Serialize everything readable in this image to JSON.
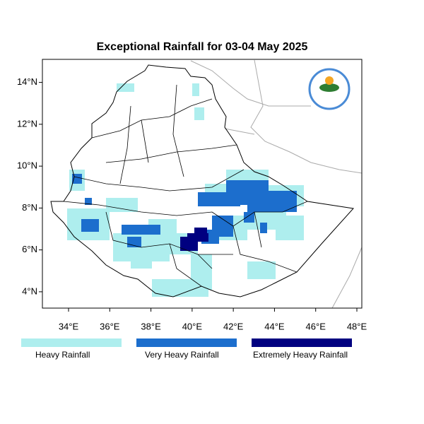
{
  "map": {
    "title": "Exceptional Rainfall for 03-04 May 2025",
    "xlim": [
      32.73,
      48.24
    ],
    "ylim": [
      3.22,
      15.1
    ],
    "xticks": [
      {
        "value": 34,
        "label": "34°E"
      },
      {
        "value": 36,
        "label": "36°E"
      },
      {
        "value": 38,
        "label": "38°E"
      },
      {
        "value": 40,
        "label": "40°E"
      },
      {
        "value": 42,
        "label": "42°E"
      },
      {
        "value": 44,
        "label": "44°E"
      },
      {
        "value": 46,
        "label": "46°E"
      },
      {
        "value": 48,
        "label": "48°E"
      }
    ],
    "yticks": [
      {
        "value": 4,
        "label": "4°N"
      },
      {
        "value": 6,
        "label": "6°N"
      },
      {
        "value": 8,
        "label": "8°N"
      },
      {
        "value": 10,
        "label": "10°N"
      },
      {
        "value": 12,
        "label": "12°N"
      },
      {
        "value": 14,
        "label": "14°N"
      }
    ],
    "legend": [
      {
        "name": "Heavy Rainfall",
        "color": "#aeeeee"
      },
      {
        "name": "Very Heavy Rainfall",
        "color": "#1c6ecd"
      },
      {
        "name": "Extremely Heavy Rainfall",
        "color": "#000080"
      }
    ]
  }
}
